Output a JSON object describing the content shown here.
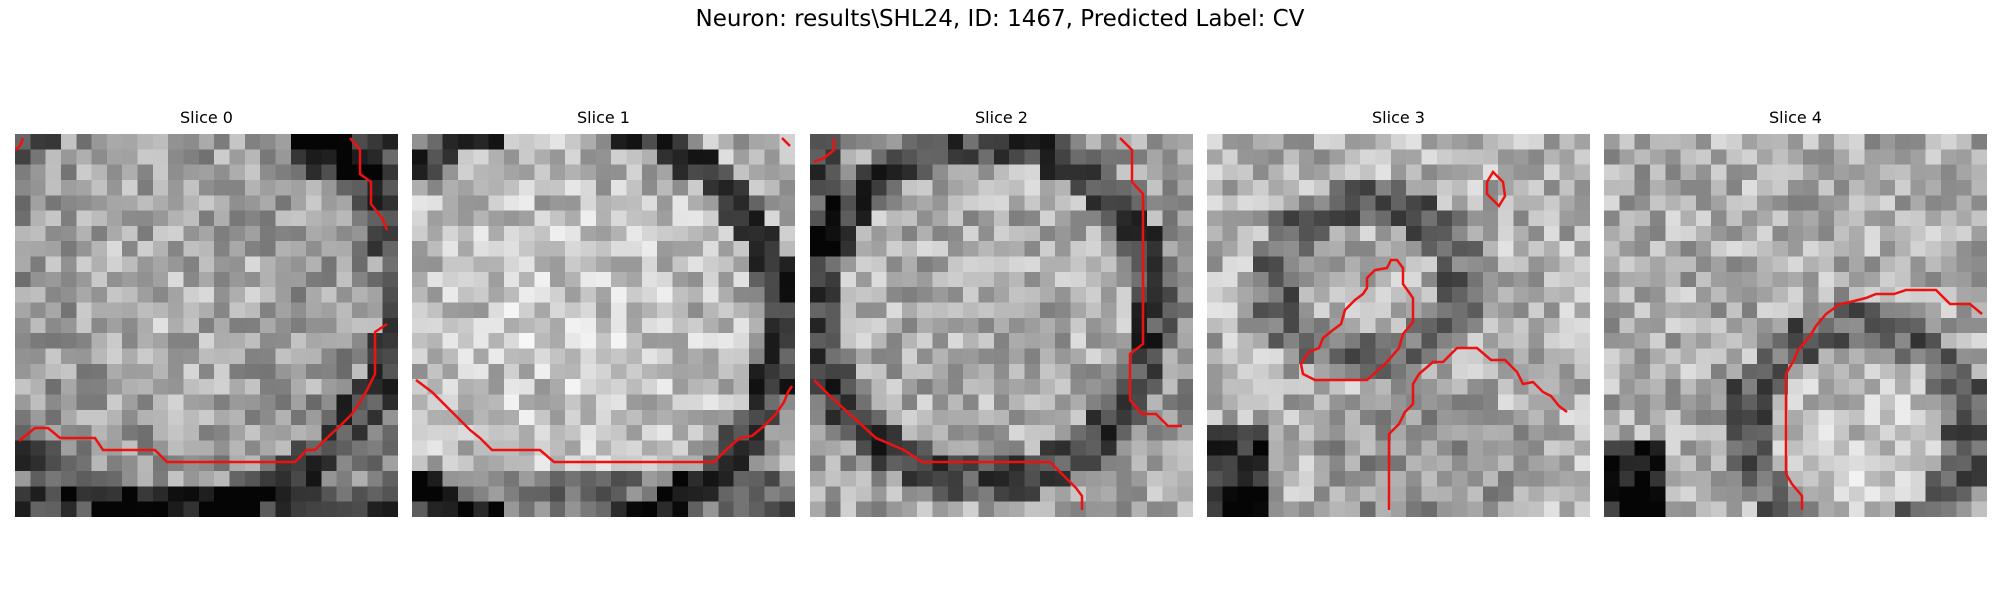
{
  "figure": {
    "title": "Neuron: results\\SHL24, ID: 1467, Predicted Label: CV"
  },
  "slices": [
    {
      "title": "Slice 0"
    },
    {
      "title": "Slice 1"
    },
    {
      "title": "Slice 2"
    },
    {
      "title": "Slice 3"
    },
    {
      "title": "Slice 4"
    }
  ],
  "colors": {
    "contour": "#ee1111",
    "background": "#ffffff"
  },
  "image": {
    "colormap": "grayscale",
    "grid": "25x25"
  }
}
